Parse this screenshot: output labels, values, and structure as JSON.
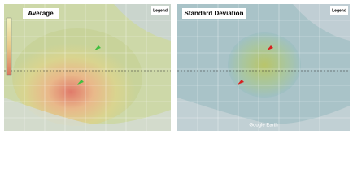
{
  "panels": [
    {
      "title": "Average",
      "legend": "Legend"
    },
    {
      "title": "Standard Deviation",
      "legend": "Legend",
      "watermark": "Google Earth"
    }
  ]
}
